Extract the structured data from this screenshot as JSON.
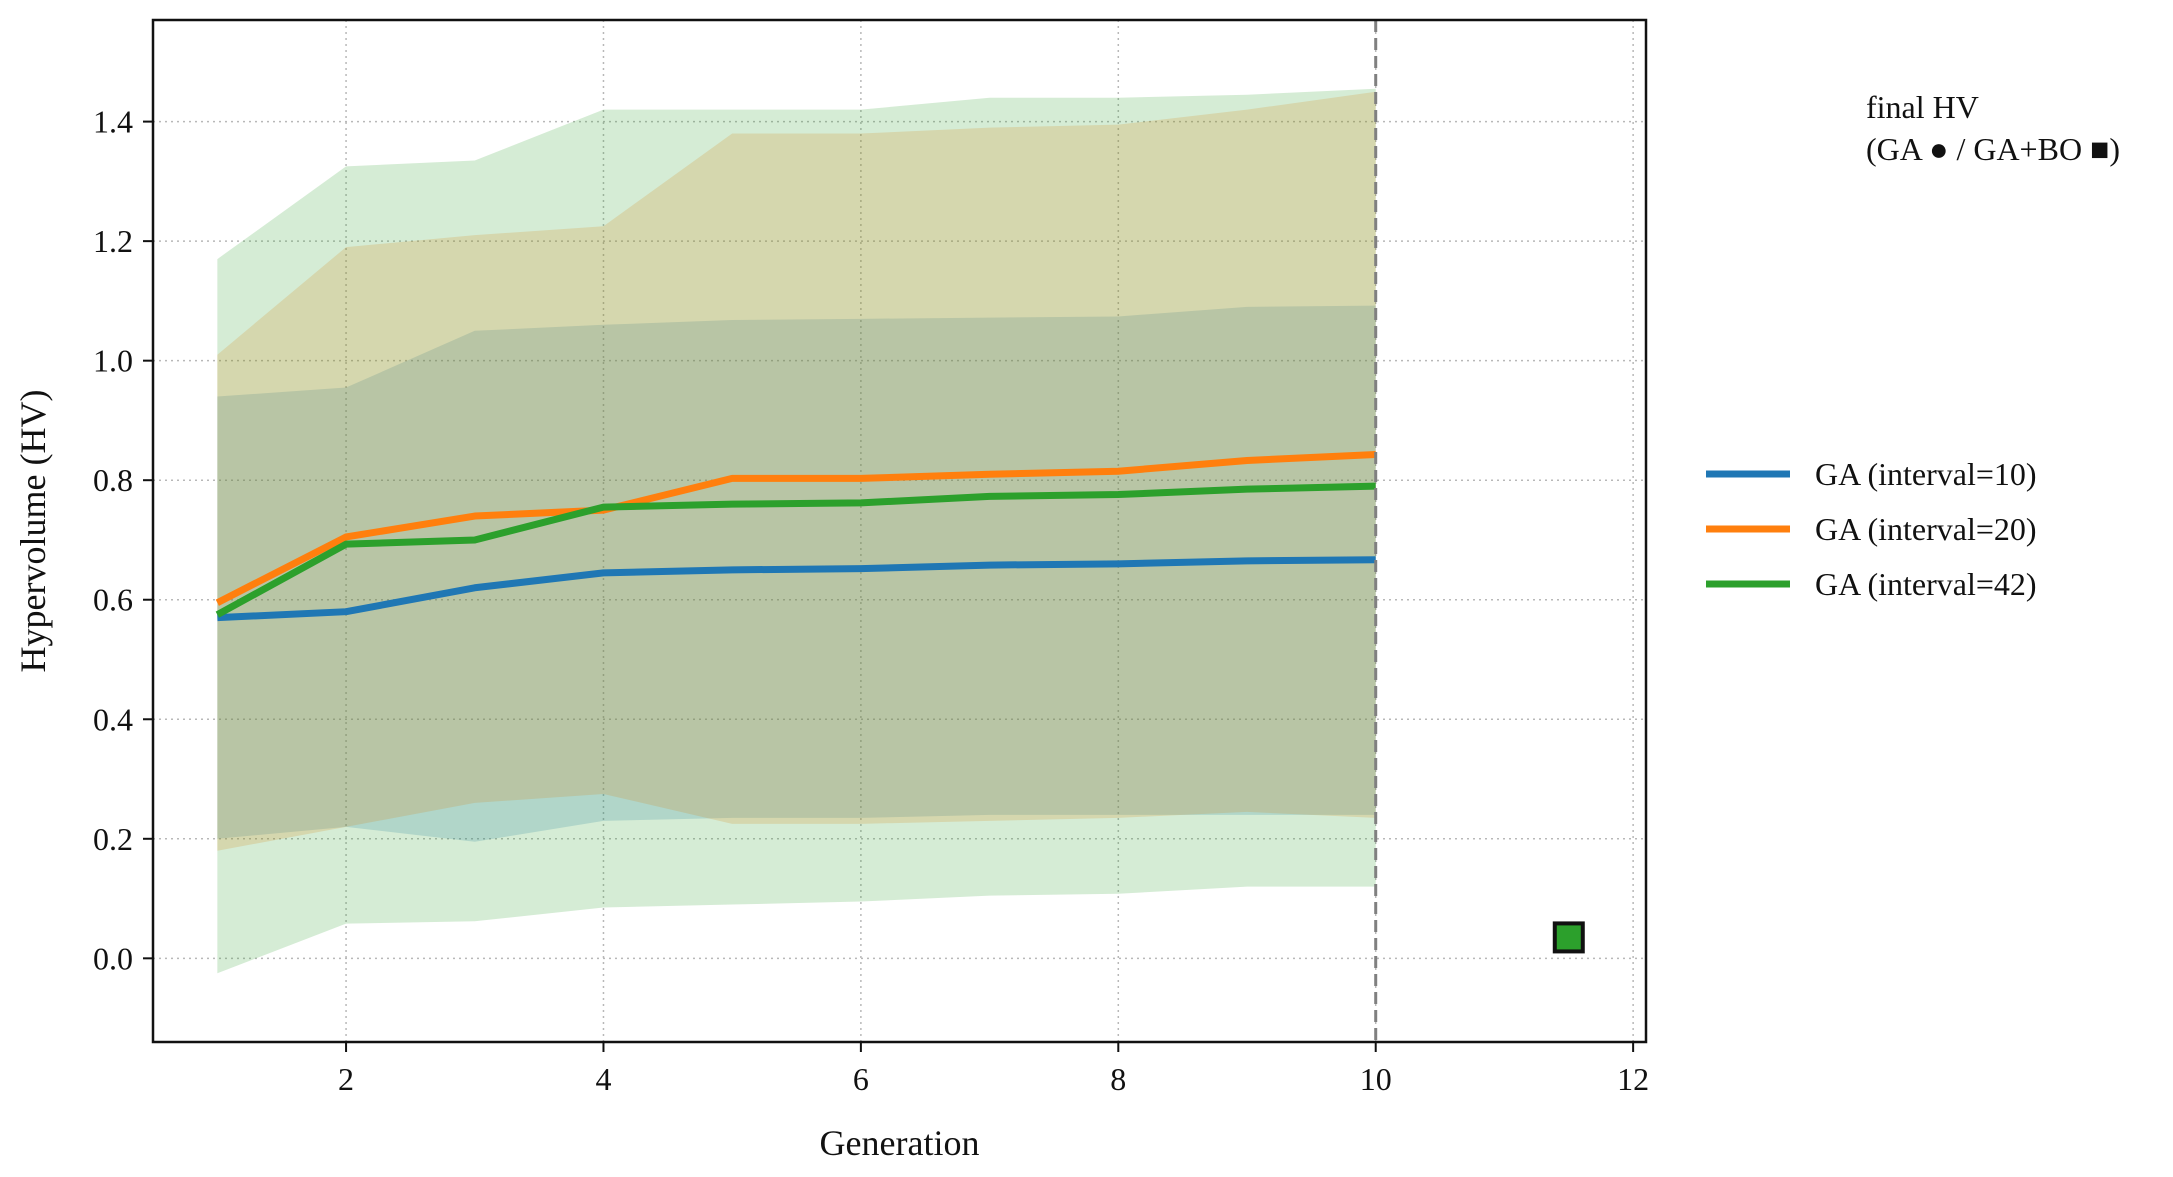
{
  "chart_data": {
    "type": "line",
    "xlabel": "Generation",
    "ylabel": "Hypervolume (HV)",
    "xlim": [
      0.5,
      12.1
    ],
    "ylim": [
      -0.14,
      1.57
    ],
    "x_ticks": [
      2,
      4,
      6,
      8,
      10,
      12
    ],
    "y_ticks": [
      0.0,
      0.2,
      0.4,
      0.6,
      0.8,
      1.0,
      1.2,
      1.4
    ],
    "x_tick_labels": [
      "2",
      "4",
      "6",
      "8",
      "10",
      "12"
    ],
    "y_tick_labels": [
      "0.0",
      "0.2",
      "0.4",
      "0.6",
      "0.8",
      "1.0",
      "1.2",
      "1.4"
    ],
    "grid": true,
    "vline_x": 10,
    "x": [
      1,
      2,
      3,
      4,
      5,
      6,
      7,
      8,
      9,
      10
    ],
    "series": [
      {
        "name": "GA (interval=10)",
        "color": "#1f77b4",
        "values": [
          0.57,
          0.58,
          0.62,
          0.645,
          0.65,
          0.652,
          0.658,
          0.66,
          0.665,
          0.667
        ],
        "band_upper": [
          0.94,
          0.955,
          1.05,
          1.06,
          1.068,
          1.07,
          1.072,
          1.074,
          1.09,
          1.092
        ],
        "band_lower": [
          0.2,
          0.22,
          0.195,
          0.23,
          0.235,
          0.235,
          0.24,
          0.24,
          0.24,
          0.24
        ]
      },
      {
        "name": "GA (interval=20)",
        "color": "#ff7f0e",
        "values": [
          0.595,
          0.705,
          0.74,
          0.75,
          0.803,
          0.803,
          0.81,
          0.815,
          0.833,
          0.843
        ],
        "band_upper": [
          1.01,
          1.19,
          1.21,
          1.225,
          1.38,
          1.38,
          1.39,
          1.395,
          1.42,
          1.45
        ],
        "band_lower": [
          0.18,
          0.22,
          0.26,
          0.275,
          0.225,
          0.225,
          0.23,
          0.235,
          0.245,
          0.235
        ]
      },
      {
        "name": "GA (interval=42)",
        "color": "#2ca02c",
        "values": [
          0.575,
          0.693,
          0.7,
          0.755,
          0.76,
          0.762,
          0.773,
          0.776,
          0.785,
          0.79
        ],
        "band_upper": [
          1.17,
          1.325,
          1.335,
          1.42,
          1.42,
          1.42,
          1.44,
          1.44,
          1.445,
          1.455
        ],
        "band_lower": [
          -0.025,
          0.058,
          0.062,
          0.085,
          0.09,
          0.095,
          0.105,
          0.108,
          0.12,
          0.12
        ]
      }
    ],
    "final_markers": [
      {
        "marker": "square",
        "x": 11.5,
        "y": 0.035,
        "color": "#2ca02c"
      }
    ],
    "legend_position": "right",
    "note": {
      "line1": "final HV",
      "line2": "(GA ● / GA+BO ■)"
    }
  }
}
